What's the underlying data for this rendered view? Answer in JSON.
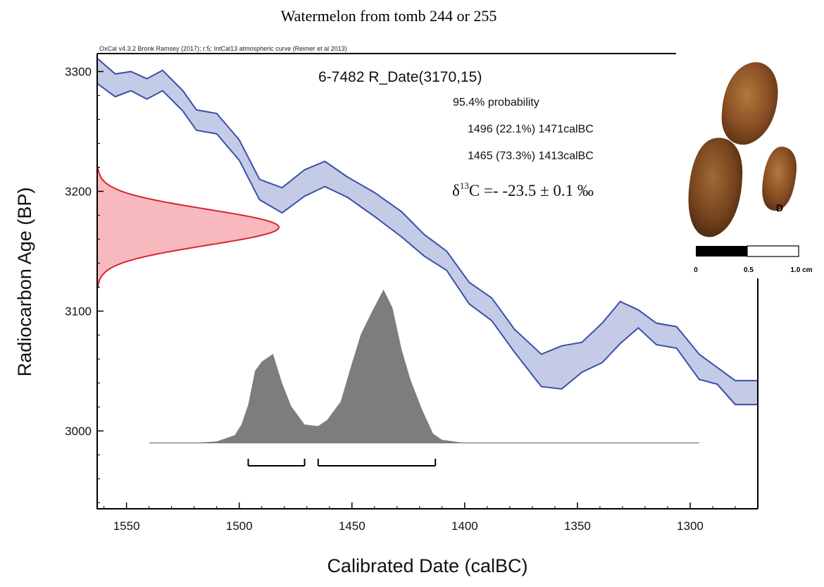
{
  "title": "Watermelon from tomb 244 or 255",
  "software_note": "OxCal v4.3.2 Bronk Ramsey (2017); r:5; IntCal13 atmospheric curve (Reimer et al 2013)",
  "sample_label": "6-7482 R_Date(3170,15)",
  "probability_label": "95.4% probability",
  "ranges": [
    "1496 (22.1%) 1471calBC",
    "1465 (73.3%) 1413calBC"
  ],
  "delta": {
    "symbol": "δ",
    "superscript": "13",
    "rest": "C =- -23.5 ± 0.1 ‰"
  },
  "photo": {
    "label": "D",
    "scale_labels": [
      "0",
      "0.5",
      "1.0 cm"
    ]
  },
  "colors": {
    "calibration_fill": "#c3cbe6",
    "calibration_stroke": "#3a4fa8",
    "measurement_fill": "#f7b9be",
    "measurement_stroke": "#d9242f",
    "posterior_fill": "#7d7d7d",
    "seed": "#8a4f24"
  },
  "chart_data": {
    "type": "area",
    "xlabel": "Calibrated Date (calBC)",
    "ylabel": "Radiocarbon Age (BP)",
    "x_reversed": true,
    "xlim": [
      1563,
      1270
    ],
    "ylim": [
      2935,
      3315
    ],
    "xticks": [
      1550,
      1500,
      1450,
      1400,
      1350,
      1300
    ],
    "yticks": [
      3000,
      3100,
      3200,
      3300
    ],
    "calibration_curve": {
      "name": "IntCal13",
      "x": [
        1563,
        1555,
        1548,
        1541,
        1534,
        1525,
        1519,
        1510,
        1500,
        1491,
        1481,
        1471,
        1462,
        1452,
        1440,
        1428,
        1418,
        1408,
        1398,
        1388,
        1378,
        1366,
        1357,
        1348,
        1339,
        1331,
        1323,
        1315,
        1306,
        1296,
        1288,
        1280,
        1270
      ],
      "upper": [
        3311,
        3298,
        3300,
        3294,
        3301,
        3284,
        3268,
        3265,
        3243,
        3210,
        3203,
        3218,
        3225,
        3212,
        3199,
        3183,
        3164,
        3150,
        3124,
        3111,
        3085,
        3064,
        3071,
        3074,
        3090,
        3108,
        3101,
        3090,
        3087,
        3064,
        3053,
        3042,
        3042
      ],
      "lower": [
        3290,
        3279,
        3284,
        3277,
        3284,
        3267,
        3251,
        3248,
        3226,
        3193,
        3182,
        3196,
        3204,
        3195,
        3179,
        3162,
        3146,
        3134,
        3106,
        3092,
        3066,
        3037,
        3035,
        3049,
        3057,
        3073,
        3086,
        3072,
        3069,
        3043,
        3039,
        3022,
        3022
      ]
    },
    "measurement": {
      "mean_bp": 3170,
      "sd_bp": 15
    },
    "posterior": {
      "baseline_bp": 2990,
      "peak_bp": 3118,
      "x": [
        1540,
        1520,
        1510,
        1502,
        1499,
        1496,
        1493,
        1490,
        1485,
        1481,
        1477,
        1471,
        1465,
        1461,
        1455,
        1450,
        1446,
        1441,
        1436,
        1432,
        1428,
        1424,
        1419,
        1414,
        1410,
        1405,
        1400,
        1350,
        1296
      ],
      "density": [
        0.0,
        0.0,
        0.01,
        0.05,
        0.12,
        0.25,
        0.47,
        0.53,
        0.58,
        0.39,
        0.24,
        0.12,
        0.11,
        0.15,
        0.27,
        0.52,
        0.71,
        0.86,
        1.0,
        0.88,
        0.61,
        0.41,
        0.22,
        0.06,
        0.02,
        0.01,
        0.0,
        0.0,
        0.0
      ]
    },
    "hpd_intervals": [
      [
        1496,
        1471
      ],
      [
        1465,
        1413
      ]
    ]
  }
}
